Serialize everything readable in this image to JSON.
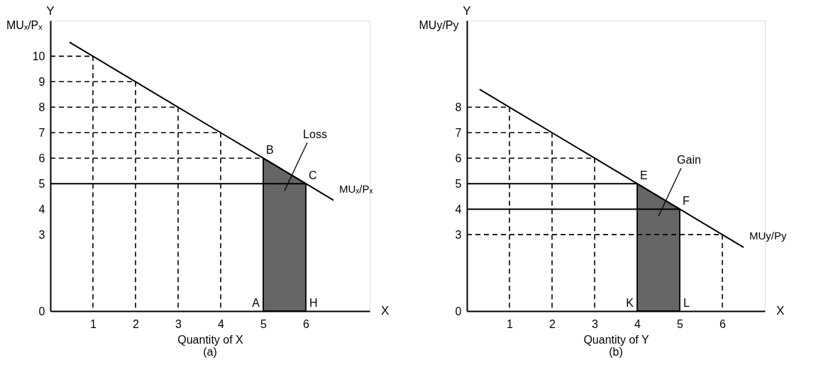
{
  "chart_data": [
    {
      "type": "line",
      "title": "(a)",
      "xlabel": "Quantity of X",
      "ylabel": "MUₓ/Pₓ",
      "xlim": [
        0,
        7.5
      ],
      "ylim": [
        0,
        11.4
      ],
      "xticks": [
        1,
        2,
        3,
        4,
        5,
        6
      ],
      "yticks": [
        0,
        3,
        4,
        5,
        6,
        7,
        8,
        9,
        10
      ],
      "series": [
        {
          "type": "area",
          "color": "#666666",
          "x": [
            5,
            6
          ],
          "values": [
            6,
            5
          ]
        },
        {
          "name": "MUₓ/Pₓ",
          "color": "#000000",
          "x": [
            0.45,
            1,
            2,
            3,
            4,
            5,
            6,
            6.65
          ],
          "values": [
            10.55,
            10,
            9,
            8,
            7,
            6,
            5,
            4.35
          ]
        },
        {
          "color": "#000000",
          "line_style": "dashed",
          "x": [
            0,
            1,
            1
          ],
          "values": [
            10,
            10,
            0
          ]
        },
        {
          "color": "#000000",
          "line_style": "dashed",
          "x": [
            0,
            2,
            2
          ],
          "values": [
            9,
            9,
            0
          ]
        },
        {
          "color": "#000000",
          "line_style": "dashed",
          "x": [
            0,
            3,
            3
          ],
          "values": [
            8,
            8,
            0
          ]
        },
        {
          "color": "#000000",
          "line_style": "dashed",
          "x": [
            0,
            4,
            4
          ],
          "values": [
            7,
            7,
            0
          ]
        },
        {
          "color": "#000000",
          "line_style": "dashed",
          "x": [
            0,
            5
          ],
          "values": [
            6,
            6
          ]
        },
        {
          "color": "#000000",
          "line_style": "solid",
          "x": [
            0,
            6
          ],
          "values": [
            5,
            5
          ]
        }
      ],
      "annotations": [
        "Y",
        "X",
        "A",
        "H",
        "Loss",
        {
          "text": "B",
          "x": 5,
          "y": 6
        },
        {
          "text": "C",
          "x": 6,
          "y": 5
        }
      ]
    },
    {
      "type": "line",
      "title": "(b)",
      "xlabel": "Quantity of Y",
      "ylabel": "MUy/Py",
      "xlim": [
        0,
        7
      ],
      "ylim": [
        0,
        11.4
      ],
      "xticks": [
        1,
        2,
        3,
        4,
        5,
        6
      ],
      "yticks": [
        0,
        3,
        4,
        5,
        6,
        7,
        8
      ],
      "series": [
        {
          "type": "area",
          "color": "#666666",
          "x": [
            4,
            5
          ],
          "values": [
            5,
            4
          ]
        },
        {
          "name": "MUy/Py",
          "color": "#000000",
          "x": [
            0.3,
            1,
            2,
            3,
            4,
            5,
            6,
            6.5
          ],
          "values": [
            8.7,
            8,
            7,
            6,
            5,
            4,
            3,
            2.5
          ]
        },
        {
          "color": "#000000",
          "line_style": "dashed",
          "x": [
            0,
            1,
            1
          ],
          "values": [
            8,
            8,
            0
          ]
        },
        {
          "color": "#000000",
          "line_style": "dashed",
          "x": [
            0,
            2,
            2
          ],
          "values": [
            7,
            7,
            0
          ]
        },
        {
          "color": "#000000",
          "line_style": "dashed",
          "x": [
            0,
            3,
            3
          ],
          "values": [
            6,
            6,
            0
          ]
        },
        {
          "color": "#000000",
          "line_style": "dashed",
          "x": [
            0,
            6,
            6
          ],
          "values": [
            3,
            3,
            0
          ]
        },
        {
          "color": "#000000",
          "line_style": "solid",
          "x": [
            0,
            4
          ],
          "values": [
            5,
            5
          ]
        },
        {
          "color": "#000000",
          "line_style": "solid",
          "x": [
            0,
            5
          ],
          "values": [
            4,
            4
          ]
        }
      ],
      "annotations": [
        "Y",
        "X",
        "K",
        "L",
        "Gain",
        {
          "text": "E",
          "x": 4,
          "y": 5
        },
        {
          "text": "F",
          "x": 5,
          "y": 4
        }
      ]
    }
  ]
}
